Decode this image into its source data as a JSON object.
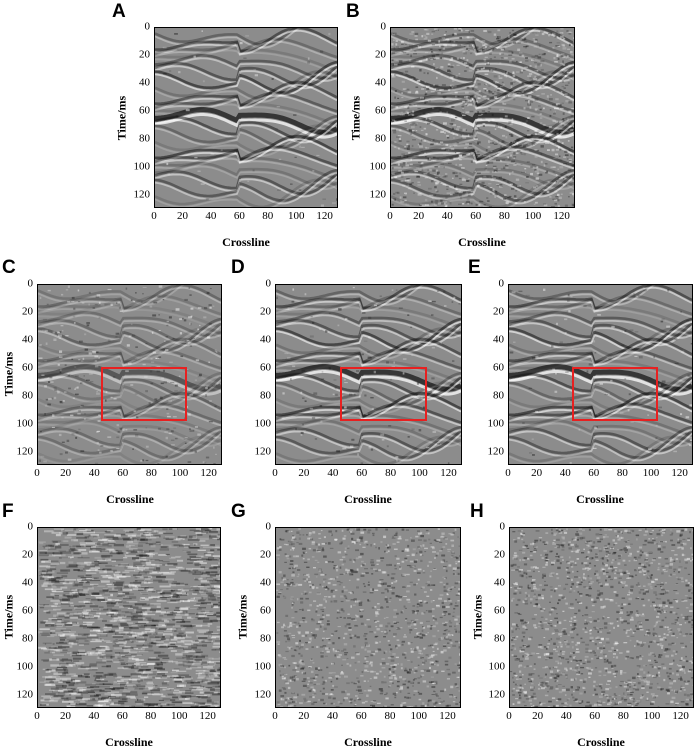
{
  "figure": {
    "panels": [
      {
        "letter": "A",
        "xlabel": "Crossline",
        "ylabel": "Time/ms",
        "kind": "clean",
        "noise": 0.03,
        "highlight_box": false
      },
      {
        "letter": "B",
        "xlabel": "Crossline",
        "ylabel": "Time/ms",
        "kind": "noisy",
        "noise": 0.75,
        "highlight_box": false
      },
      {
        "letter": "C",
        "xlabel": "Crossline",
        "ylabel": "Time/ms",
        "kind": "denoised-weak",
        "noise": 0.2,
        "highlight_box": true
      },
      {
        "letter": "D",
        "xlabel": "Crossline",
        "ylabel": "",
        "kind": "denoised",
        "noise": 0.08,
        "highlight_box": true
      },
      {
        "letter": "E",
        "xlabel": "Crossline",
        "ylabel": "",
        "kind": "denoised",
        "noise": 0.06,
        "highlight_box": true
      },
      {
        "letter": "F",
        "xlabel": "Crossline",
        "ylabel": "Time/ms",
        "kind": "residual-structured",
        "noise": 0.55,
        "highlight_box": false
      },
      {
        "letter": "G",
        "xlabel": "Crossline",
        "ylabel": "Time/ms",
        "kind": "residual-random",
        "noise": 0.3,
        "highlight_box": false
      },
      {
        "letter": "H",
        "xlabel": "Crossline",
        "ylabel": "Time/ms",
        "kind": "residual-random",
        "noise": 0.45,
        "highlight_box": false
      }
    ],
    "x_ticks": [
      "0",
      "20",
      "40",
      "60",
      "80",
      "100",
      "120"
    ],
    "y_ticks": [
      "0",
      "20",
      "40",
      "60",
      "80",
      "100",
      "120"
    ],
    "axis_range": [
      0,
      128
    ],
    "highlight_color": "#e82020"
  }
}
